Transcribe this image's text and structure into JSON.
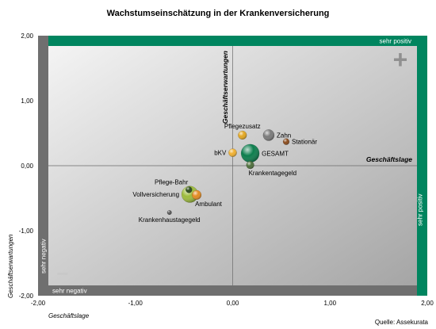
{
  "colors": {
    "band_positive": "#00855f",
    "band_negative": "#6f6f6f",
    "plot_light": "#f4f4f4",
    "plot_dark": "#a5a5a5",
    "axis_line": "#6a6a6a",
    "plus_sign": "#909090",
    "minus_sign": "#c8c8c8"
  },
  "chart_data": {
    "type": "scatter",
    "title": "Wachstumseinschätzung in der Krankenversicherung",
    "xlabel": "Geschäftslage",
    "ylabel": "Geschäftserwartungen",
    "inner_xlabel": "Geschäftslage",
    "inner_ylabel": "Geschäftserwartungen",
    "xlim": [
      -2,
      2
    ],
    "ylim": [
      -2,
      2
    ],
    "x_ticks": [
      "-2,00",
      "-1,00",
      "0,00",
      "1,00",
      "2,00"
    ],
    "y_ticks": [
      "2,00",
      "1,00",
      "0,00",
      "-1,00",
      "-2,00"
    ],
    "band_labels": {
      "top": "sehr positiv",
      "right": "sehr positiv",
      "bottom": "sehr negativ",
      "left": "sehr negativ"
    },
    "corner_signs": {
      "positive": "+",
      "negative": "−"
    },
    "source": "Quelle: Assekurata",
    "points": [
      {
        "label": "GESAMT",
        "x": 0.18,
        "y": 0.19,
        "size": 1.0,
        "color": "#0b7d4c",
        "label_pos": "right"
      },
      {
        "label": "Vollversicherung",
        "x": -0.44,
        "y": -0.44,
        "size": 0.82,
        "color": "#9dbb3c",
        "label_pos": "left"
      },
      {
        "label": "Zahn",
        "x": 0.37,
        "y": 0.47,
        "size": 0.38,
        "color": "#7a7a7a",
        "label_pos": "right"
      },
      {
        "label": "Pflegezusatz",
        "x": 0.1,
        "y": 0.47,
        "size": 0.22,
        "color": "#e3a61e",
        "label_pos": "top"
      },
      {
        "label": "Stationär",
        "x": 0.55,
        "y": 0.37,
        "size": 0.12,
        "color": "#8a4a1a",
        "label_pos": "right"
      },
      {
        "label": "bKV",
        "x": 0.0,
        "y": 0.2,
        "size": 0.2,
        "color": "#f0b030",
        "label_pos": "left"
      },
      {
        "label": "Krankentagegeld",
        "x": 0.18,
        "y": 0.01,
        "size": 0.18,
        "color": "#4d6e3a",
        "label_pos": "below-right"
      },
      {
        "label": "Ambulant",
        "x": -0.37,
        "y": -0.45,
        "size": 0.26,
        "color": "#e38a1f",
        "label_pos": "below-right"
      },
      {
        "label": "Pflege-Bahr",
        "x": -0.45,
        "y": -0.37,
        "size": 0.12,
        "color": "#2a4a1a",
        "label_pos": "top-left"
      },
      {
        "label": "Krankenhaustagegeld",
        "x": -0.65,
        "y": -0.72,
        "size": 0.06,
        "color": "#555555",
        "label_pos": "below"
      }
    ]
  }
}
